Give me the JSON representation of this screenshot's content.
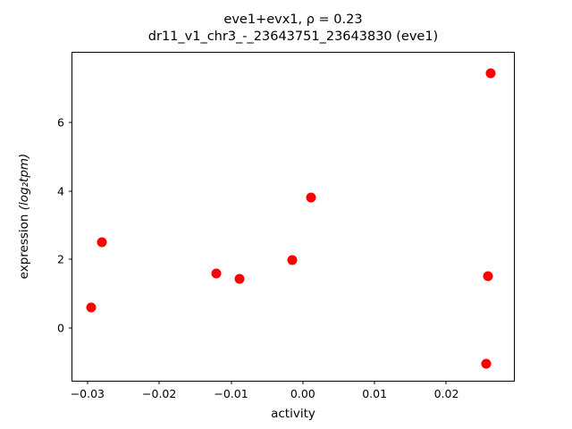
{
  "figure": {
    "title_line1": "eve1+evx1, ρ = 0.23",
    "title_line2": "dr11_v1_chr3_-_23643751_23643830 (eve1)"
  },
  "chart_data": {
    "type": "scatter",
    "title": "eve1+evx1, ρ = 0.23",
    "subtitle": "dr11_v1_chr3_-_23643751_23643830 (eve1)",
    "xlabel": "activity",
    "ylabel": "expression (log₂tpm)",
    "ylabel_prefix": "expression ",
    "ylabel_math": "(log₂tpm)",
    "marker_color": "#ff0000",
    "marker_shape": "circle",
    "legend": "none",
    "grid": false,
    "xlim": [
      -0.0321,
      0.0294
    ],
    "ylim": [
      -1.55,
      8.05
    ],
    "x_ticks": [
      -0.03,
      -0.02,
      -0.01,
      0.0,
      0.01,
      0.02
    ],
    "x_tick_labels": [
      "−0.03",
      "−0.02",
      "−0.01",
      "0.00",
      "0.01",
      "0.02"
    ],
    "y_ticks": [
      0,
      2,
      4,
      6
    ],
    "y_tick_labels": [
      "0",
      "2",
      "4",
      "6"
    ],
    "points": [
      [
        -0.0295,
        0.6
      ],
      [
        -0.028,
        2.5
      ],
      [
        -0.012,
        1.58
      ],
      [
        -0.0088,
        1.43
      ],
      [
        -0.0015,
        1.97
      ],
      [
        0.0012,
        3.8
      ],
      [
        0.0262,
        7.45
      ],
      [
        0.0258,
        1.52
      ],
      [
        0.0256,
        -1.05
      ]
    ]
  }
}
